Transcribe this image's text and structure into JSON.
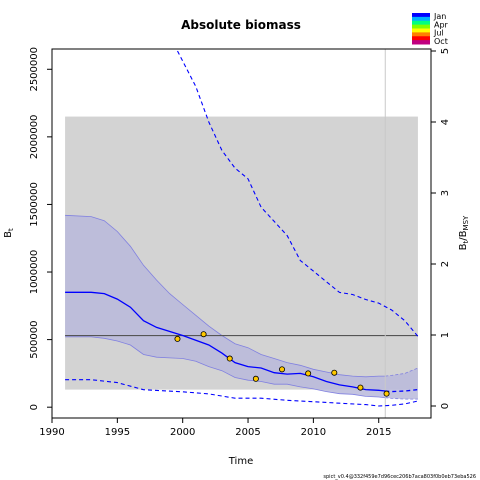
{
  "chart_data": {
    "type": "line",
    "title": "Absolute biomass",
    "xlabel": "Time",
    "ylabel_left": "Bₜ",
    "ylabel_right": "Bₜ/B_MSY",
    "footer": "spict_v0.4@332f459e7d96cec206b7aca803f0b0eb73eba526",
    "xlim": [
      1990,
      2019
    ],
    "ylim_left": [
      -80000,
      2650000
    ],
    "ylim_right": [
      0,
      5
    ],
    "x_ticks": [
      1990,
      1995,
      2000,
      2005,
      2010,
      2015
    ],
    "x_tick_labels": [
      "1990",
      "1995",
      "2000",
      "2005",
      "2010",
      "2015"
    ],
    "y_ticks_left": [
      0,
      500000,
      1000000,
      1500000,
      2000000,
      2500000
    ],
    "y_tick_labels_left": [
      "0",
      "500000",
      "1000000",
      "1500000",
      "2000000",
      "2500000"
    ],
    "y_ticks_right": [
      0,
      1,
      2,
      3,
      4,
      5
    ],
    "y_tick_labels_right": [
      "0",
      "1",
      "2",
      "3",
      "4",
      "5"
    ],
    "grid": false,
    "bmsy_line": 530000,
    "bmsy_ci_band": {
      "x": [
        1991,
        2018
      ],
      "y": [
        130000,
        2150000
      ]
    },
    "vertical_line_x": 2015.5,
    "biomass_estimate": {
      "x": [
        1991,
        1993,
        1994,
        1995,
        1996,
        1997,
        1998,
        2000,
        2002,
        2003,
        2004,
        2005,
        2006,
        2007,
        2008,
        2009,
        2010,
        2011,
        2012,
        2013,
        2014,
        2015,
        2015.5
      ],
      "y": [
        850000,
        850000,
        840000,
        800000,
        740000,
        640000,
        590000,
        530000,
        460000,
        400000,
        330000,
        300000,
        290000,
        255000,
        245000,
        250000,
        225000,
        190000,
        165000,
        150000,
        130000,
        125000,
        120000
      ]
    },
    "biomass_ci_upper": {
      "x": [
        1991,
        1993,
        1994,
        1995,
        1996,
        1997,
        1998,
        1999,
        2000,
        2001,
        2002,
        2003,
        2004,
        2005,
        2006,
        2007,
        2008,
        2009,
        2010,
        2011,
        2012,
        2013,
        2014,
        2015,
        2015.5
      ],
      "y": [
        1420000,
        1410000,
        1380000,
        1300000,
        1190000,
        1050000,
        940000,
        840000,
        760000,
        680000,
        600000,
        530000,
        470000,
        440000,
        390000,
        360000,
        330000,
        310000,
        280000,
        260000,
        240000,
        230000,
        225000,
        230000,
        230000
      ]
    },
    "biomass_ci_lower": {
      "x": [
        1991,
        1993,
        1994,
        1995,
        1996,
        1997,
        1998,
        1999,
        2000,
        2001,
        2002,
        2003,
        2004,
        2005,
        2006,
        2007,
        2008,
        2009,
        2010,
        2011,
        2012,
        2013,
        2014,
        2015,
        2015.5
      ],
      "y": [
        520000,
        520000,
        510000,
        490000,
        460000,
        390000,
        370000,
        365000,
        360000,
        340000,
        300000,
        270000,
        220000,
        200000,
        190000,
        170000,
        170000,
        150000,
        135000,
        115000,
        100000,
        95000,
        80000,
        75000,
        70000
      ]
    },
    "forecast_estimate": {
      "x": [
        2015.5,
        2016,
        2017,
        2018
      ],
      "y": [
        120000,
        115000,
        120000,
        130000
      ]
    },
    "forecast_ci_upper": {
      "x": [
        2015.5,
        2016,
        2017,
        2018
      ],
      "y": [
        230000,
        235000,
        250000,
        290000
      ]
    },
    "forecast_ci_lower": {
      "x": [
        2015.5,
        2016,
        2017,
        2018
      ],
      "y": [
        70000,
        65000,
        60000,
        60000
      ]
    },
    "bbmsy_ci_upper": {
      "x": [
        1999.6,
        2001,
        2002,
        2003,
        2004,
        2005,
        2006,
        2007,
        2008,
        2009,
        2010,
        2011,
        2012,
        2013,
        2014,
        2015,
        2016,
        2017,
        2018
      ],
      "y": [
        5.0,
        4.5,
        4.0,
        3.6,
        3.35,
        3.2,
        2.8,
        2.6,
        2.4,
        2.05,
        1.9,
        1.75,
        1.6,
        1.57,
        1.5,
        1.45,
        1.35,
        1.2,
        0.98
      ]
    },
    "bbmsy_ci_lower": {
      "x": [
        1991,
        1993,
        1995,
        1997,
        2000,
        2002,
        2004,
        2006,
        2008,
        2010,
        2012,
        2014,
        2015,
        2016,
        2017,
        2018
      ],
      "y": [
        0.37,
        0.37,
        0.33,
        0.23,
        0.2,
        0.17,
        0.11,
        0.11,
        0.08,
        0.06,
        0.04,
        0.02,
        0.0,
        0.01,
        0.03,
        0.07
      ]
    },
    "observations": {
      "x": [
        1999.6,
        2001.6,
        2003.6,
        2005.6,
        2007.6,
        2009.6,
        2011.6,
        2013.6,
        2015.6
      ],
      "y": [
        505000,
        540000,
        360000,
        210000,
        280000,
        250000,
        255000,
        145000,
        100000
      ],
      "seasons": [
        "Jan",
        "Jan",
        "Jan",
        "Jan",
        "Jan",
        "Jan",
        "Jan",
        "Jan",
        "Jan"
      ]
    },
    "legend": {
      "labels": [
        "Jan",
        "Apr",
        "Jul",
        "Oct"
      ],
      "colors": [
        "#0000ff",
        "#00b0ff",
        "#00ff80",
        "#80ff00",
        "#ffff00",
        "#ff8000",
        "#ff0000",
        "#c00080"
      ]
    },
    "colors": {
      "estimate": "#0000ff",
      "ci_fill": "#b8b8da",
      "ci_line": "#8080e0",
      "bmsy_band": "#d3d3d3",
      "bmsy_line": "#555555",
      "obs_fill": "#ffc800",
      "obs_edge": "#000000",
      "vline": "#c8c8c8"
    }
  }
}
